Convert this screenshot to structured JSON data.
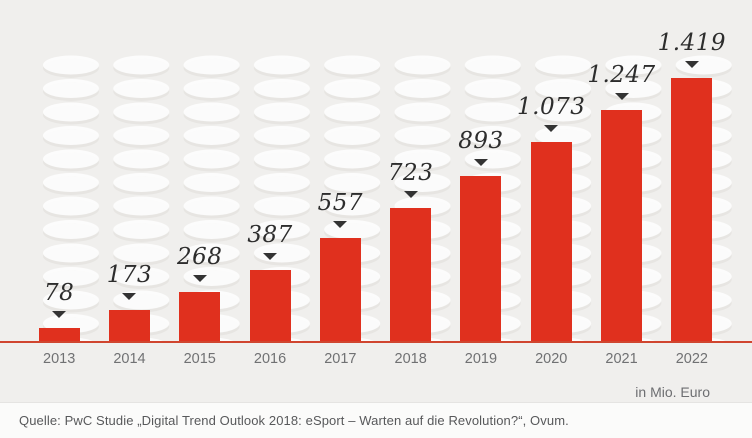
{
  "chart_data": {
    "type": "bar",
    "title": "",
    "categories": [
      "2013",
      "2014",
      "2015",
      "2016",
      "2017",
      "2018",
      "2019",
      "2020",
      "2021",
      "2022"
    ],
    "values": [
      78,
      173,
      268,
      387,
      557,
      723,
      893,
      1073,
      1247,
      1419
    ],
    "value_labels": [
      "78",
      "173",
      "268",
      "387",
      "557",
      "723",
      "893",
      "1.073",
      "1.247",
      "1.419"
    ],
    "xlabel": "",
    "ylabel": "",
    "ylim": [
      0,
      1419
    ],
    "grid": false,
    "legend_position": "none",
    "unit_label": "in Mio. Euro",
    "marker": "triangle-down"
  },
  "footer": {
    "source": "Quelle: PwC Studie „Digital Trend Outlook 2018: eSport – Warten auf die Revolution?“, Ovum."
  },
  "colors": {
    "background": "#f0efed",
    "bar": "#e0301e",
    "axis_line": "#d0452f",
    "value_label": "#2d2d2d",
    "year_label": "#707173",
    "unit_label": "#6d6e71",
    "source_text": "#58595b",
    "footer_background": "#fbfbfa",
    "coin_fill": "#ffffff",
    "coin_shadow": "#e6e5e2"
  }
}
